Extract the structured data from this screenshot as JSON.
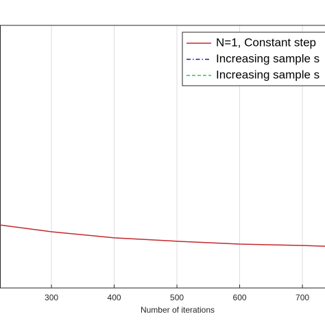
{
  "chart_data": {
    "type": "line",
    "xlabel": "Number of iterations",
    "x": [
      218,
      300,
      400,
      500,
      600,
      700,
      736
    ],
    "xlim": [
      218,
      736
    ],
    "xticks": [
      300,
      400,
      500,
      600,
      700
    ],
    "ylim": [
      0,
      1
    ],
    "grid": true,
    "legend": "upper right",
    "series": [
      {
        "name": "N=1, Constant step",
        "color": "#c0282d",
        "style": "solid",
        "values": [
          0.24,
          0.214,
          0.191,
          0.178,
          0.167,
          0.162,
          0.159
        ]
      },
      {
        "name": "Increasing sample s",
        "color": "#1a1aa0",
        "style": "dashdot",
        "values": [
          null,
          null,
          null,
          null,
          null,
          null,
          null
        ]
      },
      {
        "name": "Increasing sample s",
        "color": "#2ecc40",
        "style": "dashed",
        "values": [
          null,
          null,
          null,
          null,
          null,
          null,
          null
        ]
      }
    ]
  }
}
